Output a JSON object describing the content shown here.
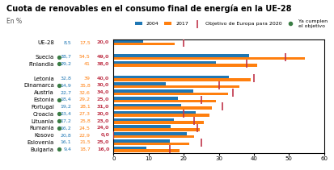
{
  "chart_data": {
    "type": "bar",
    "orientation": "horizontal",
    "title": "Cuota de renovables en el consumo final de energía en la UE-28",
    "subtitle": "En %",
    "categories": [
      "UE-28",
      null,
      "Suecia",
      "Finlandia",
      null,
      "Letonia",
      "Dinamarca",
      "Austria",
      "Estonia",
      "Portugal",
      "Croacia",
      "Lituania",
      "Rumania",
      "Kosovo",
      "Eslovenia",
      "Bulgaria"
    ],
    "series": [
      {
        "name": "2004",
        "values": [
          8.5,
          null,
          38.7,
          29.2,
          null,
          32.8,
          14.9,
          22.7,
          18.4,
          19.2,
          23.4,
          17.2,
          16.2,
          20.8,
          16.1,
          9.4
        ],
        "value_labels": [
          "8,5",
          null,
          "38,7",
          "29,2",
          null,
          "32,8",
          "14,9",
          "22,7",
          "18,4",
          "19,2",
          "23,4",
          "17,2",
          "16,2",
          "20,8",
          "16,1",
          "9,4"
        ]
      },
      {
        "name": "2017",
        "values": [
          17.5,
          null,
          54.5,
          41.0,
          null,
          39.0,
          35.8,
          32.6,
          29.2,
          28.1,
          27.3,
          25.8,
          24.5,
          22.9,
          21.5,
          18.7
        ],
        "value_labels": [
          "17,5",
          null,
          "54,5",
          "41",
          null,
          "39",
          "35,8",
          "32,6",
          "29,2",
          "28,1",
          "27,3",
          "25,8",
          "24,5",
          "22,9",
          "21,5",
          "18,7"
        ]
      },
      {
        "name": "Objetivo de Europa para 2020",
        "type": "scatter",
        "marker": "|",
        "color": "#c0354a",
        "values": [
          20.0,
          null,
          49.0,
          38.0,
          null,
          40.0,
          30.0,
          34.0,
          25.0,
          31.0,
          20.0,
          23.0,
          24.0,
          0.0,
          25.0,
          16.0
        ],
        "value_labels": [
          "20,0",
          null,
          "49,0",
          "38,0",
          null,
          "40,0",
          "30,0",
          "34,0",
          "25,0",
          "31,0",
          "20,0",
          "23,0",
          "24,0",
          "0,0",
          "25,0",
          "16,0"
        ]
      }
    ],
    "met": {
      "name": "Ya cumplen\nel objetivo",
      "color": "#3a7d44",
      "values": [
        false,
        false,
        true,
        true,
        false,
        false,
        true,
        false,
        true,
        false,
        true,
        true,
        true,
        false,
        false,
        true
      ]
    },
    "xlim": [
      0,
      60
    ],
    "xticks": [
      0,
      10,
      20,
      30,
      40,
      50,
      60
    ],
    "data_labels": true,
    "legend": "upper right"
  }
}
